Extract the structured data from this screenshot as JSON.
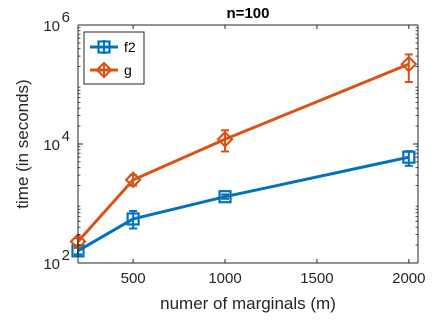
{
  "chart_data": {
    "type": "line",
    "title": "n=100",
    "xlabel": "numer of marginals (m)",
    "ylabel": "time (in seconds)",
    "xlim": [
      200,
      2050
    ],
    "ylim": [
      100,
      1000000
    ],
    "yscale": "log",
    "grid": false,
    "legend_position": "top-left",
    "x_ticks": [
      500,
      1000,
      1500,
      2000
    ],
    "x_tick_labels": [
      "500",
      "1000",
      "1500",
      "2000"
    ],
    "y_ticks": [
      100,
      10000,
      1000000
    ],
    "y_tick_labels": [
      {
        "base": "10",
        "exp": "2"
      },
      {
        "base": "10",
        "exp": "4"
      },
      {
        "base": "10",
        "exp": "6"
      }
    ],
    "x": [
      200,
      500,
      1000,
      2000
    ],
    "series": [
      {
        "name": "f2",
        "color": "#0072BD",
        "marker": "square",
        "values": [
          160,
          550,
          1300,
          6000
        ],
        "err_low": [
          140,
          380,
          1200,
          4300
        ],
        "err_high": [
          180,
          750,
          1420,
          7600
        ]
      },
      {
        "name": "g",
        "color": "#D95319",
        "marker": "diamond",
        "values": [
          230,
          2500,
          12000,
          220000
        ],
        "err_low": [
          200,
          2000,
          7500,
          110000
        ],
        "err_high": [
          260,
          3000,
          17000,
          320000
        ]
      }
    ]
  }
}
